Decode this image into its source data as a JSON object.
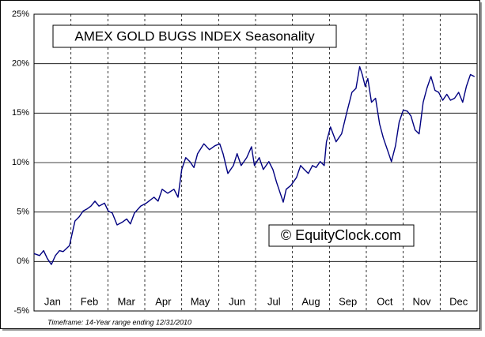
{
  "chart_data": {
    "type": "line",
    "title": "AMEX GOLD BUGS INDEX Seasonality",
    "watermark": "© EquityClock.com",
    "footnote": "Timeframe: 14-Year range ending 12/31/2010",
    "xlim": [
      0,
      12
    ],
    "xticks": [
      {
        "value": 0,
        "label": "Jan"
      },
      {
        "value": 1,
        "label": "Feb"
      },
      {
        "value": 2,
        "label": "Mar"
      },
      {
        "value": 3,
        "label": "Apr"
      },
      {
        "value": 4,
        "label": "May"
      },
      {
        "value": 5,
        "label": "Jun"
      },
      {
        "value": 6,
        "label": "Jul"
      },
      {
        "value": 7,
        "label": "Aug"
      },
      {
        "value": 8,
        "label": "Sep"
      },
      {
        "value": 9,
        "label": "Oct"
      },
      {
        "value": 10,
        "label": "Nov"
      },
      {
        "value": 11,
        "label": "Dec"
      }
    ],
    "ylim": [
      -5,
      25
    ],
    "yticks": [
      {
        "value": 25,
        "label": "25%"
      },
      {
        "value": 20,
        "label": "20%"
      },
      {
        "value": 15,
        "label": "15%"
      },
      {
        "value": 10,
        "label": "10%"
      },
      {
        "value": 5,
        "label": "5%"
      },
      {
        "value": 0,
        "label": "0%"
      },
      {
        "value": -5,
        "label": "-5%"
      }
    ],
    "grid": true,
    "color": "#000080",
    "x": [
      0,
      0.15,
      0.26,
      0.36,
      0.47,
      0.58,
      0.69,
      0.79,
      0.96,
      1.11,
      1.22,
      1.33,
      1.43,
      1.54,
      1.65,
      1.76,
      1.91,
      2.01,
      2.12,
      2.25,
      2.4,
      2.51,
      2.61,
      2.72,
      2.89,
      3.04,
      3.25,
      3.36,
      3.47,
      3.62,
      3.79,
      3.9,
      4.0,
      4.11,
      4.22,
      4.33,
      4.43,
      4.6,
      4.75,
      4.9,
      5.03,
      5.12,
      5.25,
      5.4,
      5.5,
      5.61,
      5.76,
      5.89,
      5.97,
      6.1,
      6.21,
      6.36,
      6.47,
      6.57,
      6.75,
      6.83,
      6.96,
      7.11,
      7.22,
      7.32,
      7.43,
      7.54,
      7.64,
      7.75,
      7.86,
      7.92,
      8.03,
      8.18,
      8.33,
      8.46,
      8.61,
      8.72,
      8.82,
      8.89,
      8.97,
      9.04,
      9.14,
      9.25,
      9.36,
      9.46,
      9.57,
      9.68,
      9.79,
      9.89,
      10.0,
      10.11,
      10.21,
      10.32,
      10.43,
      10.54,
      10.64,
      10.75,
      10.86,
      10.96,
      11.07,
      11.18,
      11.28,
      11.39,
      11.5,
      11.61,
      11.71,
      11.82,
      11.93
    ],
    "values": [
      0.8,
      0.6,
      1.1,
      0.3,
      -0.3,
      0.6,
      1.1,
      1.0,
      1.6,
      4.1,
      4.5,
      5.1,
      5.3,
      5.6,
      6.1,
      5.6,
      5.9,
      5.1,
      4.9,
      3.7,
      4.0,
      4.3,
      3.8,
      4.9,
      5.6,
      5.9,
      6.5,
      6.1,
      7.3,
      6.9,
      7.3,
      6.5,
      9.3,
      10.5,
      10.1,
      9.5,
      10.9,
      11.9,
      11.3,
      11.7,
      11.9,
      10.9,
      8.9,
      9.7,
      10.9,
      9.7,
      10.5,
      11.6,
      9.7,
      10.5,
      9.3,
      10.1,
      9.3,
      8.0,
      6.0,
      7.3,
      7.7,
      8.5,
      9.7,
      9.3,
      8.9,
      9.7,
      9.5,
      10.1,
      9.7,
      12.1,
      13.6,
      12.1,
      12.9,
      14.9,
      17.1,
      17.5,
      19.7,
      18.9,
      17.7,
      18.5,
      16.1,
      16.5,
      13.9,
      12.5,
      11.3,
      10.1,
      11.7,
      14.1,
      15.3,
      15.2,
      14.7,
      13.3,
      12.9,
      16.1,
      17.5,
      18.7,
      17.3,
      17.1,
      16.3,
      16.9,
      16.3,
      16.5,
      17.1,
      16.1,
      17.7,
      18.9,
      18.7
    ]
  }
}
